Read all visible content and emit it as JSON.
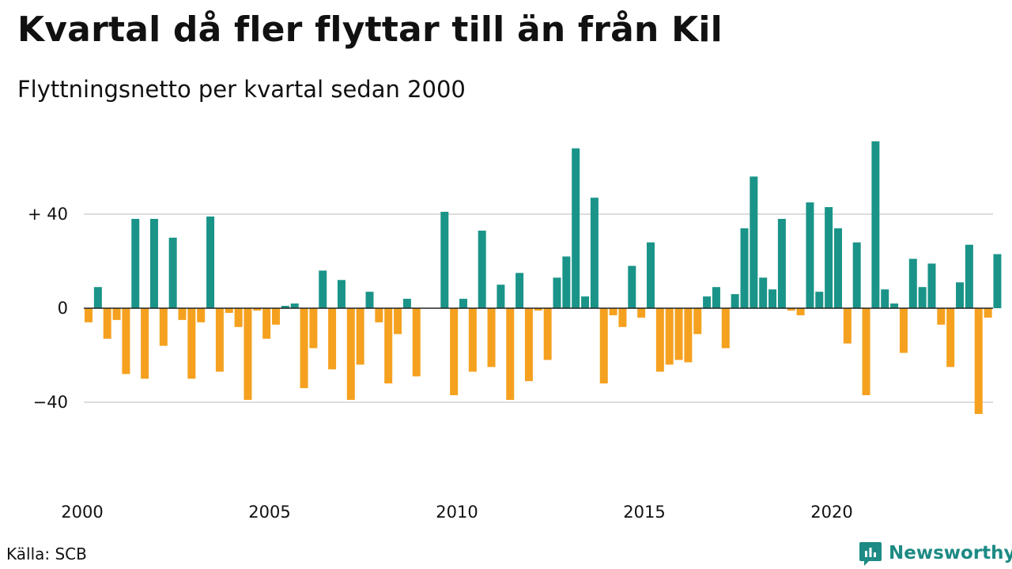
{
  "title": "Kvartal då fler flyttar till än från Kil",
  "subtitle": "Flyttningsnetto per kvartal sedan 2000",
  "source": "Källa: SCB",
  "brand": {
    "name": "Newsworthy",
    "icon": "bar-chart-logo-icon"
  },
  "colors": {
    "positive": "#1a9488",
    "negative": "#f5a11f",
    "grid": "#dddddd",
    "zero": "#222222"
  },
  "chart_data": {
    "type": "bar",
    "title": "Kvartal då fler flyttar till än från Kil",
    "subtitle": "Flyttningsnetto per kvartal sedan 2000",
    "xlabel": "",
    "ylabel": "",
    "start": "2000 Q1",
    "interval": "quarter",
    "x_ticks": [
      "2000",
      "2005",
      "2010",
      "2015",
      "2020"
    ],
    "y_ticks": [
      {
        "value": 40,
        "label": "+ 40"
      },
      {
        "value": 0,
        "label": "0"
      },
      {
        "value": -40,
        "label": "−40"
      }
    ],
    "ylim": [
      -72,
      75
    ],
    "grid": true,
    "values": [
      -6,
      9,
      -13,
      -5,
      -28,
      38,
      -30,
      38,
      -16,
      30,
      -5,
      -30,
      -6,
      39,
      -27,
      -2,
      -8,
      -39,
      -1,
      -13,
      -7,
      1,
      2,
      -34,
      -17,
      16,
      -26,
      12,
      -39,
      -24,
      7,
      -6,
      -32,
      -11,
      4,
      -29,
      0,
      0,
      41,
      -37,
      4,
      -27,
      33,
      -25,
      10,
      -39,
      15,
      -31,
      -1,
      -22,
      13,
      22,
      68,
      5,
      47,
      -32,
      -3,
      -8,
      18,
      -4,
      28,
      -27,
      -24,
      -22,
      -23,
      -11,
      5,
      9,
      -17,
      6,
      34,
      56,
      13,
      8,
      38,
      -1,
      -3,
      45,
      7,
      43,
      34,
      -15,
      28,
      -37,
      71,
      8,
      2,
      -19,
      21,
      9,
      19,
      -7,
      -25,
      11,
      27,
      -45,
      -4,
      23
    ]
  }
}
